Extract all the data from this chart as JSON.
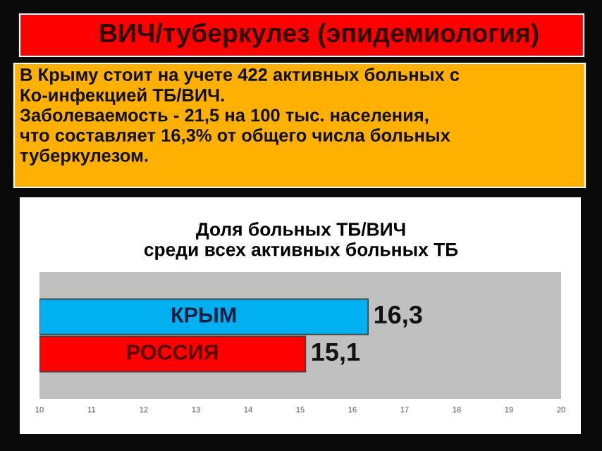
{
  "chart_data": {
    "type": "bar",
    "orientation": "horizontal",
    "title": "ВИЧ/туберкулез (эпидемиология)",
    "subtitle": "Доля больных ТБ/ВИЧ\nсреди всех активных больных ТБ",
    "annotations": [
      "В Крыму стоит на учете 422 активных больных с\nКо-инфекцией ТБ/ВИЧ.\nЗаболеваемость - 21,5 на 100 тыс. населения,\nчто составляет 16,3% от общего числа больных\nтуберкулезом."
    ],
    "categories": [
      "КРЫМ",
      "РОССИЯ"
    ],
    "values": [
      16.3,
      15.1
    ],
    "colors": [
      "#00b0f0",
      "#ff0000"
    ],
    "value_labels": [
      "16,3",
      "15,1"
    ],
    "xlim": [
      10,
      20
    ],
    "xticks": [
      10,
      11,
      12,
      13,
      14,
      15,
      16,
      17,
      18,
      19,
      20
    ],
    "tick_labels": "x",
    "grid": false,
    "legend": false
  }
}
